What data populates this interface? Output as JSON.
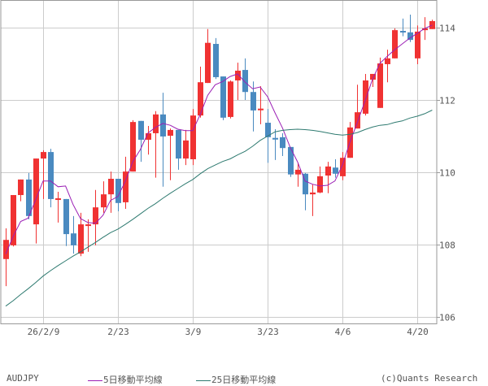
{
  "symbol": "AUDJPY",
  "credit": "(c)Quants Research",
  "legend": [
    {
      "label": "5日移動平均線",
      "color": "#9b1fb5"
    },
    {
      "label": "25日移動平均線",
      "color": "#2e7a70"
    }
  ],
  "colors": {
    "up": "#f03232",
    "down": "#4a8ac0",
    "grid": "#cccccc",
    "border": "#999999"
  },
  "chart_data": {
    "type": "candlestick",
    "title": "AUDJPY",
    "xlabel": "",
    "ylabel": "",
    "ylim": [
      105.8,
      114.8
    ],
    "yticks": [
      106,
      108,
      110,
      112,
      114
    ],
    "xticks": [
      {
        "label": "26/2/9",
        "index": 5
      },
      {
        "label": "2/23",
        "index": 15
      },
      {
        "label": "3/9",
        "index": 25
      },
      {
        "label": "3/23",
        "index": 35
      },
      {
        "label": "4/6",
        "index": 45
      },
      {
        "label": "4/20",
        "index": 55
      }
    ],
    "grid": true,
    "legend_position": "bottom",
    "candles": [
      {
        "o": 107.6,
        "h": 108.45,
        "l": 106.85,
        "c": 108.13
      },
      {
        "o": 107.98,
        "h": 109.37,
        "l": 107.95,
        "c": 109.37
      },
      {
        "o": 109.37,
        "h": 109.8,
        "l": 109.2,
        "c": 109.8
      },
      {
        "o": 109.8,
        "h": 109.98,
        "l": 108.7,
        "c": 108.79
      },
      {
        "o": 108.56,
        "h": 110.38,
        "l": 108.03,
        "c": 110.38
      },
      {
        "o": 110.38,
        "h": 110.61,
        "l": 109.26,
        "c": 110.56
      },
      {
        "o": 110.56,
        "h": 110.65,
        "l": 109.03,
        "c": 109.26
      },
      {
        "o": 109.24,
        "h": 109.46,
        "l": 108.61,
        "c": 109.28
      },
      {
        "o": 109.26,
        "h": 109.26,
        "l": 107.96,
        "c": 108.29
      },
      {
        "o": 108.31,
        "h": 108.79,
        "l": 107.75,
        "c": 107.98
      },
      {
        "o": 107.75,
        "h": 108.88,
        "l": 107.68,
        "c": 108.56
      },
      {
        "o": 108.52,
        "h": 108.7,
        "l": 107.8,
        "c": 108.56
      },
      {
        "o": 108.56,
        "h": 109.51,
        "l": 107.98,
        "c": 109.03
      },
      {
        "o": 109.03,
        "h": 109.75,
        "l": 108.88,
        "c": 109.39
      },
      {
        "o": 109.39,
        "h": 110.02,
        "l": 108.88,
        "c": 109.82
      },
      {
        "o": 109.82,
        "h": 109.75,
        "l": 108.92,
        "c": 109.15
      },
      {
        "o": 109.17,
        "h": 110.43,
        "l": 108.99,
        "c": 110.02
      },
      {
        "o": 110.02,
        "h": 111.44,
        "l": 110.02,
        "c": 111.39
      },
      {
        "o": 111.42,
        "h": 111.42,
        "l": 110.29,
        "c": 110.9
      },
      {
        "o": 110.9,
        "h": 111.28,
        "l": 110.49,
        "c": 111.08
      },
      {
        "o": 111.08,
        "h": 111.69,
        "l": 109.85,
        "c": 111.6
      },
      {
        "o": 111.6,
        "h": 112.2,
        "l": 109.6,
        "c": 110.99
      },
      {
        "o": 111.01,
        "h": 111.21,
        "l": 109.78,
        "c": 111.17
      },
      {
        "o": 111.17,
        "h": 111.17,
        "l": 110.07,
        "c": 110.38
      },
      {
        "o": 110.38,
        "h": 111.17,
        "l": 110.2,
        "c": 110.88
      },
      {
        "o": 110.36,
        "h": 111.75,
        "l": 110.2,
        "c": 111.57
      },
      {
        "o": 111.57,
        "h": 112.92,
        "l": 111.51,
        "c": 112.49
      },
      {
        "o": 112.47,
        "h": 113.96,
        "l": 112.47,
        "c": 113.58
      },
      {
        "o": 113.55,
        "h": 113.71,
        "l": 112.58,
        "c": 112.63
      },
      {
        "o": 112.65,
        "h": 112.65,
        "l": 111.44,
        "c": 111.51
      },
      {
        "o": 111.53,
        "h": 112.54,
        "l": 111.49,
        "c": 112.51
      },
      {
        "o": 112.54,
        "h": 113.03,
        "l": 112.0,
        "c": 112.81
      },
      {
        "o": 112.83,
        "h": 113.15,
        "l": 112.0,
        "c": 112.22
      },
      {
        "o": 112.22,
        "h": 112.51,
        "l": 111.13,
        "c": 111.71
      },
      {
        "o": 111.73,
        "h": 112.38,
        "l": 111.33,
        "c": 111.76
      },
      {
        "o": 111.37,
        "h": 111.75,
        "l": 110.26,
        "c": 110.97
      },
      {
        "o": 110.95,
        "h": 111.19,
        "l": 110.34,
        "c": 110.92
      },
      {
        "o": 110.97,
        "h": 111.08,
        "l": 110.45,
        "c": 110.67
      },
      {
        "o": 110.7,
        "h": 110.7,
        "l": 109.87,
        "c": 109.94
      },
      {
        "o": 109.94,
        "h": 110.27,
        "l": 109.6,
        "c": 110.07
      },
      {
        "o": 109.96,
        "h": 109.98,
        "l": 108.95,
        "c": 109.39
      },
      {
        "o": 109.39,
        "h": 109.66,
        "l": 108.79,
        "c": 109.44
      },
      {
        "o": 109.44,
        "h": 110.16,
        "l": 109.42,
        "c": 109.89
      },
      {
        "o": 109.91,
        "h": 110.29,
        "l": 109.42,
        "c": 110.16
      },
      {
        "o": 110.13,
        "h": 110.36,
        "l": 109.85,
        "c": 109.96
      },
      {
        "o": 109.89,
        "h": 110.56,
        "l": 109.78,
        "c": 110.4
      },
      {
        "o": 110.4,
        "h": 111.39,
        "l": 110.4,
        "c": 111.24
      },
      {
        "o": 111.21,
        "h": 112.42,
        "l": 111.21,
        "c": 111.66
      },
      {
        "o": 111.62,
        "h": 112.72,
        "l": 111.57,
        "c": 112.54
      },
      {
        "o": 112.56,
        "h": 112.72,
        "l": 112.36,
        "c": 112.72
      },
      {
        "o": 111.78,
        "h": 113.17,
        "l": 111.78,
        "c": 113.01
      },
      {
        "o": 112.99,
        "h": 113.39,
        "l": 112.49,
        "c": 113.15
      },
      {
        "o": 113.15,
        "h": 113.98,
        "l": 113.15,
        "c": 113.93
      },
      {
        "o": 113.91,
        "h": 114.25,
        "l": 113.76,
        "c": 113.87
      },
      {
        "o": 113.87,
        "h": 114.36,
        "l": 113.6,
        "c": 113.66
      },
      {
        "o": 113.15,
        "h": 114.06,
        "l": 112.99,
        "c": 113.89
      },
      {
        "o": 113.93,
        "h": 114.29,
        "l": 113.66,
        "c": 113.98
      },
      {
        "o": 113.96,
        "h": 114.22,
        "l": 113.96,
        "c": 114.18
      }
    ],
    "series": [
      {
        "name": "5日移動平均線",
        "color": "#9b1fb5",
        "values": [
          107.74,
          108.23,
          108.64,
          108.73,
          109.24,
          109.76,
          109.76,
          109.6,
          109.62,
          109.11,
          108.72,
          108.61,
          108.59,
          108.81,
          109.22,
          109.33,
          109.76,
          110.3,
          110.63,
          111.08,
          111.24,
          111.35,
          111.3,
          111.19,
          111.15,
          111.15,
          111.6,
          112.13,
          112.42,
          112.51,
          112.65,
          112.72,
          112.49,
          112.31,
          112.36,
          112.09,
          111.64,
          111.22,
          110.7,
          110.29,
          109.76,
          109.67,
          109.62,
          109.64,
          109.76,
          110.2,
          110.83,
          111.38,
          111.96,
          112.56,
          113.01,
          113.21,
          113.39,
          113.55,
          113.71,
          113.84,
          113.98,
          114.07
        ]
      },
      {
        "name": "25日移動平均線",
        "color": "#2e7a70",
        "values": [
          106.3,
          106.45,
          106.62,
          106.78,
          106.95,
          107.13,
          107.28,
          107.42,
          107.55,
          107.68,
          107.8,
          107.93,
          108.06,
          108.2,
          108.33,
          108.43,
          108.56,
          108.7,
          108.85,
          109.0,
          109.13,
          109.28,
          109.42,
          109.55,
          109.68,
          109.8,
          109.96,
          110.1,
          110.2,
          110.3,
          110.37,
          110.48,
          110.58,
          110.72,
          110.88,
          111.0,
          111.12,
          111.16,
          111.18,
          111.19,
          111.18,
          111.16,
          111.13,
          111.09,
          111.05,
          111.03,
          111.05,
          111.1,
          111.18,
          111.25,
          111.3,
          111.32,
          111.38,
          111.42,
          111.5,
          111.55,
          111.62,
          111.72
        ]
      }
    ]
  }
}
